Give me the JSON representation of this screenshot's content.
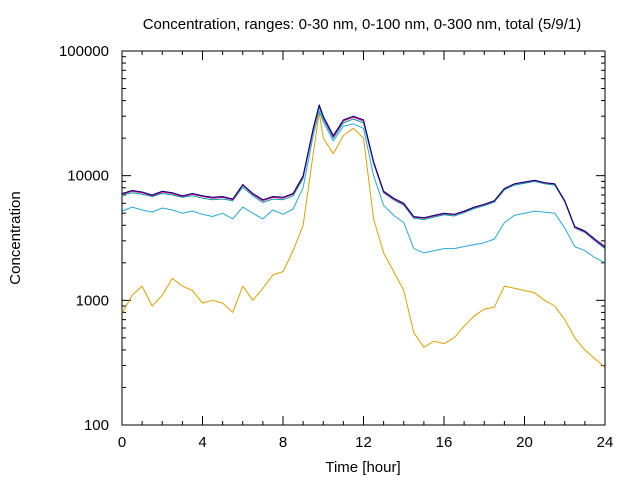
{
  "chart_data": {
    "type": "line",
    "title": "Concentration, ranges: 0-30 nm, 0-100 nm, 0-300 nm, total (5/9/1)",
    "xlabel": "Time [hour]",
    "ylabel": "Concentration",
    "xlim": [
      0,
      24
    ],
    "ylim": [
      100,
      100000
    ],
    "yscale": "log",
    "grid": false,
    "legend": "none",
    "x_ticks": [
      "0",
      "4",
      "8",
      "12",
      "16",
      "20",
      "24"
    ],
    "y_ticks": [
      "100",
      "1000",
      "10000",
      "100000"
    ],
    "x": [
      0,
      0.5,
      1,
      1.5,
      2,
      2.5,
      3,
      3.5,
      4,
      4.5,
      5,
      5.5,
      6,
      6.5,
      7,
      7.5,
      8,
      8.5,
      9,
      9.5,
      9.8,
      10,
      10.5,
      11,
      11.5,
      12,
      12.5,
      13,
      13.5,
      14,
      14.5,
      15,
      15.5,
      16,
      16.5,
      17,
      17.5,
      18,
      18.5,
      19,
      19.5,
      20,
      20.5,
      21,
      21.5,
      22,
      22.5,
      23,
      23.5,
      24
    ],
    "series": [
      {
        "color": "#000080",
        "values": [
          7200,
          7600,
          7400,
          7000,
          7500,
          7300,
          6900,
          7200,
          6900,
          6700,
          6800,
          6500,
          8500,
          7200,
          6400,
          6800,
          6700,
          7200,
          10000,
          24000,
          37000,
          30000,
          21000,
          28000,
          30000,
          28000,
          13000,
          7500,
          6600,
          6000,
          4700,
          4600,
          4800,
          5000,
          4900,
          5200,
          5600,
          5900,
          6300,
          7900,
          8600,
          8900,
          9200,
          8800,
          8600,
          6300,
          3900,
          3600,
          3100,
          2700
        ]
      },
      {
        "color": "#e0007f",
        "values": [
          7100,
          7500,
          7300,
          6900,
          7400,
          7200,
          6800,
          7100,
          6800,
          6600,
          6700,
          6400,
          8400,
          7100,
          6300,
          6700,
          6600,
          7100,
          9800,
          23500,
          36500,
          29500,
          20500,
          27500,
          29500,
          27500,
          12800,
          7400,
          6500,
          5900,
          4650,
          4550,
          4750,
          4950,
          4850,
          5150,
          5550,
          5850,
          6250,
          7850,
          8550,
          8850,
          9150,
          8750,
          8550,
          6250,
          3850,
          3550,
          3050,
          2650
        ]
      },
      {
        "color": "#00a0a0",
        "values": [
          7000,
          7300,
          7100,
          6800,
          7200,
          7000,
          6700,
          6900,
          6600,
          6400,
          6500,
          6300,
          8100,
          6900,
          6100,
          6500,
          6400,
          6900,
          9500,
          23000,
          35500,
          28500,
          20000,
          26500,
          28500,
          26500,
          12500,
          7300,
          6400,
          5800,
          4550,
          4450,
          4650,
          4850,
          4750,
          5050,
          5450,
          5750,
          6150,
          7700,
          8400,
          8700,
          9000,
          8600,
          8400,
          6150,
          3800,
          3500,
          3000,
          2600
        ]
      },
      {
        "color": "#2aa8d8",
        "values": [
          5200,
          5600,
          5300,
          5100,
          5500,
          5300,
          5000,
          5200,
          4900,
          4700,
          5000,
          4500,
          5600,
          5000,
          4500,
          5300,
          4900,
          5400,
          8000,
          21000,
          33000,
          27000,
          19000,
          25000,
          26000,
          24000,
          10000,
          5800,
          4800,
          4200,
          2600,
          2400,
          2500,
          2600,
          2600,
          2700,
          2800,
          2900,
          3100,
          4200,
          4800,
          5000,
          5200,
          5100,
          5000,
          3800,
          2700,
          2500,
          2200,
          2000
        ]
      },
      {
        "color": "#e0a000",
        "values": [
          780,
          1100,
          1300,
          900,
          1100,
          1500,
          1300,
          1200,
          950,
          1000,
          950,
          800,
          1300,
          1000,
          1250,
          1600,
          1700,
          2500,
          4000,
          15000,
          32000,
          20000,
          15000,
          21000,
          24000,
          20000,
          4500,
          2400,
          1700,
          1200,
          550,
          420,
          470,
          450,
          500,
          620,
          750,
          850,
          880,
          1300,
          1250,
          1200,
          1150,
          1000,
          900,
          700,
          500,
          400,
          340,
          290
        ]
      }
    ]
  }
}
